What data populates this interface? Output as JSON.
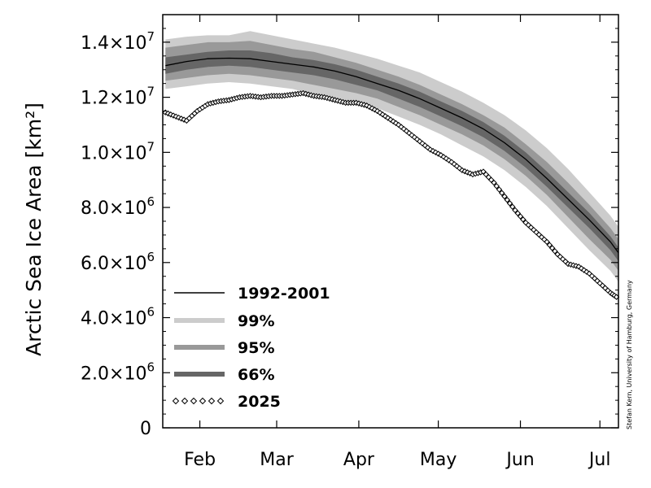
{
  "chart_data": {
    "type": "line",
    "ylabel": "Arctic Sea Ice Area [km²]",
    "credit": "Stefan Kern, University of Hamburg, Germany",
    "xlim": [
      31,
      203
    ],
    "ylim": [
      0,
      15000000
    ],
    "x_ticks": [
      {
        "label": "Feb",
        "day": 45
      },
      {
        "label": "Mar",
        "day": 74
      },
      {
        "label": "Apr",
        "day": 105
      },
      {
        "label": "May",
        "day": 135
      },
      {
        "label": "Jun",
        "day": 166
      },
      {
        "label": "Jul",
        "day": 196
      }
    ],
    "y_ticks": [
      {
        "value": 0,
        "label": "0"
      },
      {
        "value": 2000000,
        "label": "2.0×10",
        "exp": "6"
      },
      {
        "value": 4000000,
        "label": "4.0×10",
        "exp": "6"
      },
      {
        "value": 6000000,
        "label": "6.0×10",
        "exp": "6"
      },
      {
        "value": 8000000,
        "label": "8.0×10",
        "exp": "6"
      },
      {
        "value": 10000000,
        "label": "1.0×10",
        "exp": "7"
      },
      {
        "value": 12000000,
        "label": "1.2×10",
        "exp": "7"
      },
      {
        "value": 14000000,
        "label": "1.4×10",
        "exp": "7"
      }
    ],
    "colors": {
      "band99": "#cccccc",
      "band95": "#999999",
      "band66": "#666666",
      "mean": "#000000",
      "current": "#000000"
    },
    "x": [
      32,
      40,
      48,
      56,
      64,
      72,
      80,
      88,
      96,
      104,
      112,
      120,
      128,
      136,
      144,
      152,
      160,
      168,
      176,
      184,
      192,
      200,
      203
    ],
    "mean": [
      13150000,
      13300000,
      13400000,
      13420000,
      13400000,
      13300000,
      13200000,
      13100000,
      12950000,
      12750000,
      12500000,
      12250000,
      11950000,
      11600000,
      11250000,
      10850000,
      10350000,
      9750000,
      9050000,
      8300000,
      7550000,
      6750000,
      6350000
    ],
    "band99_upper": [
      14100000,
      14200000,
      14250000,
      14250000,
      14400000,
      14250000,
      14100000,
      13950000,
      13800000,
      13600000,
      13400000,
      13150000,
      12900000,
      12550000,
      12200000,
      11800000,
      11350000,
      10800000,
      10150000,
      9400000,
      8550000,
      7700000,
      7300000
    ],
    "band99_lower": [
      12300000,
      12400000,
      12500000,
      12550000,
      12500000,
      12400000,
      12300000,
      12100000,
      11950000,
      11800000,
      11600000,
      11300000,
      11000000,
      10650000,
      10250000,
      9850000,
      9350000,
      8750000,
      8050000,
      7250000,
      6450000,
      5700000,
      5300000
    ],
    "band95_upper": [
      13800000,
      13900000,
      14000000,
      14000000,
      14050000,
      13900000,
      13750000,
      13650000,
      13450000,
      13250000,
      13000000,
      12750000,
      12450000,
      12100000,
      11750000,
      11350000,
      10900000,
      10300000,
      9650000,
      8900000,
      8100000,
      7250000,
      6850000
    ],
    "band95_lower": [
      12600000,
      12700000,
      12800000,
      12850000,
      12800000,
      12700000,
      12600000,
      12450000,
      12300000,
      12150000,
      11950000,
      11650000,
      11350000,
      11000000,
      10650000,
      10250000,
      9750000,
      9150000,
      8450000,
      7650000,
      6850000,
      6100000,
      5700000
    ],
    "band66_upper": [
      13450000,
      13550000,
      13650000,
      13700000,
      13700000,
      13600000,
      13450000,
      13350000,
      13200000,
      13000000,
      12750000,
      12500000,
      12200000,
      11850000,
      11500000,
      11100000,
      10600000,
      10000000,
      9300000,
      8550000,
      7800000,
      6950000,
      6550000
    ],
    "band66_lower": [
      12850000,
      13000000,
      13100000,
      13150000,
      13100000,
      13000000,
      12900000,
      12800000,
      12650000,
      12450000,
      12250000,
      11950000,
      11650000,
      11300000,
      10950000,
      10550000,
      10050000,
      9450000,
      8750000,
      8000000,
      7250000,
      6450000,
      6050000
    ],
    "current_x": [
      32,
      36,
      40,
      44,
      48,
      52,
      56,
      60,
      64,
      68,
      72,
      76,
      80,
      84,
      88,
      92,
      96,
      100,
      104,
      108,
      112,
      116,
      120,
      124,
      128,
      132,
      136,
      140,
      144,
      148,
      152,
      156,
      160,
      164,
      168,
      172,
      176,
      180,
      184,
      188,
      192,
      196,
      200,
      203
    ],
    "current_y": [
      11450000,
      11300000,
      11150000,
      11500000,
      11750000,
      11850000,
      11900000,
      12000000,
      12050000,
      12000000,
      12050000,
      12050000,
      12100000,
      12150000,
      12050000,
      12000000,
      11900000,
      11800000,
      11800000,
      11700000,
      11500000,
      11250000,
      11000000,
      10700000,
      10400000,
      10100000,
      9900000,
      9650000,
      9350000,
      9200000,
      9300000,
      8900000,
      8400000,
      7900000,
      7450000,
      7100000,
      6750000,
      6300000,
      5950000,
      5850000,
      5600000,
      5250000,
      4900000,
      4700000
    ],
    "legend": [
      {
        "key": "mean",
        "label": "1992-2001"
      },
      {
        "key": "band99",
        "label": "99%"
      },
      {
        "key": "band95",
        "label": "95%"
      },
      {
        "key": "band66",
        "label": "66%"
      },
      {
        "key": "current",
        "label": "2025"
      }
    ]
  }
}
